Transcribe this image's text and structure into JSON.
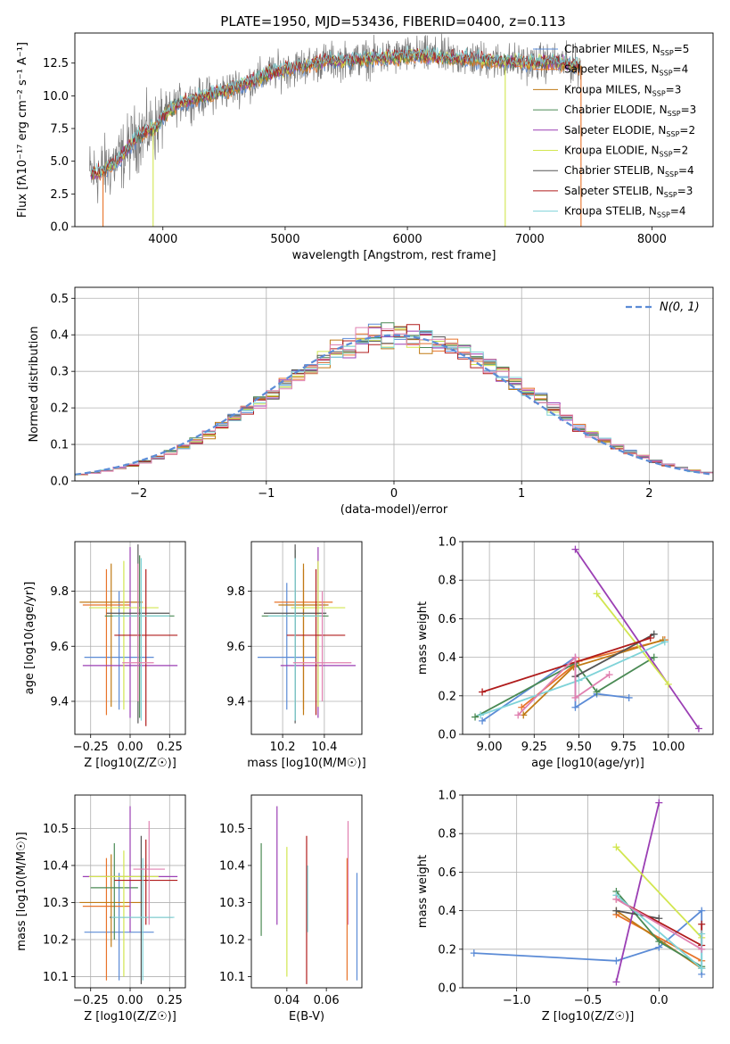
{
  "figure_title": "PLATE=1950, MJD=53436, FIBERID=0400, z=0.113",
  "colors": {
    "chabrier_miles": "#5b8bd6",
    "salpeter_miles": "#e8742a",
    "kroupa_miles": "#c07a14",
    "chabrier_elodie": "#4a8a54",
    "salpeter_elodie": "#9b3fb4",
    "kroupa_elodie": "#d2e650",
    "chabrier_stelib": "#555555",
    "salpeter_stelib": "#b01c1c",
    "kroupa_stelib": "#7fd3d8",
    "pink": "#e080b0",
    "gaussian": "#5b8bd6"
  },
  "chart_data": [
    {
      "id": "spectrum",
      "type": "line",
      "title": "PLATE=1950, MJD=53436, FIBERID=0400, z=0.113",
      "xlabel": "wavelength [Angstrom, rest frame]",
      "ylabel": "Flux [fλ10⁻¹⁷ erg cm⁻² s⁻¹ A⁻¹]",
      "xlim": [
        3280,
        8500
      ],
      "ylim": [
        0,
        14.8
      ],
      "xticks": [
        4000,
        5000,
        6000,
        7000,
        8000
      ],
      "yticks": [
        0.0,
        2.5,
        5.0,
        7.5,
        10.0,
        12.5
      ],
      "xticklabels": [
        "4000",
        "5000",
        "6000",
        "7000",
        "8000"
      ],
      "yticklabels": [
        "0.0",
        "2.5",
        "5.0",
        "7.5",
        "10.0",
        "12.5"
      ],
      "grid": false,
      "legend_position": "right",
      "series": [
        {
          "name": "Chabrier MILES, N",
          "sub": "SSP",
          "tail": "=5"
        },
        {
          "name": "Salpeter MILES, N",
          "sub": "SSP",
          "tail": "=4"
        },
        {
          "name": "Kroupa MILES, N",
          "sub": "SSP",
          "tail": "=3"
        },
        {
          "name": "Chabrier ELODIE, N",
          "sub": "SSP",
          "tail": "=3"
        },
        {
          "name": "Salpeter ELODIE, N",
          "sub": "SSP",
          "tail": "=2"
        },
        {
          "name": "Kroupa ELODIE, N",
          "sub": "SSP",
          "tail": "=2"
        },
        {
          "name": "Chabrier STELIB, N",
          "sub": "SSP",
          "tail": "=4"
        },
        {
          "name": "Salpeter STELIB, N",
          "sub": "SSP",
          "tail": "=3"
        },
        {
          "name": "Kroupa STELIB, N",
          "sub": "SSP",
          "tail": "=4"
        }
      ],
      "continuum": [
        [
          3400,
          4.0
        ],
        [
          3500,
          4.2
        ],
        [
          3650,
          5.2
        ],
        [
          3800,
          7.0
        ],
        [
          3950,
          7.6
        ],
        [
          4000,
          8.5
        ],
        [
          4150,
          9.5
        ],
        [
          4300,
          9.8
        ],
        [
          4500,
          10.4
        ],
        [
          4700,
          11.0
        ],
        [
          4900,
          11.8
        ],
        [
          5100,
          12.2
        ],
        [
          5300,
          12.6
        ],
        [
          5500,
          12.7
        ],
        [
          5800,
          12.9
        ],
        [
          6100,
          13.1
        ],
        [
          6400,
          12.9
        ],
        [
          6700,
          12.7
        ],
        [
          7000,
          12.5
        ],
        [
          7200,
          12.6
        ],
        [
          7420,
          12.3
        ]
      ],
      "edges": [
        {
          "x": 3510,
          "color": "salpeter_miles"
        },
        {
          "x": 3920,
          "color": "kroupa_elodie"
        },
        {
          "x": 6800,
          "color": "kroupa_elodie"
        },
        {
          "x": 7420,
          "color": "salpeter_miles"
        }
      ]
    },
    {
      "id": "residuals",
      "type": "histogram",
      "xlabel": "(data-model)/error",
      "ylabel": "Normed distribution",
      "xlim": [
        -2.5,
        2.5
      ],
      "ylim": [
        0,
        0.53
      ],
      "xticks": [
        -2,
        -1,
        0,
        1,
        2
      ],
      "xticklabels": [
        "−2",
        "−1",
        "0",
        "1",
        "2"
      ],
      "yticks": [
        0.0,
        0.1,
        0.2,
        0.3,
        0.4,
        0.5
      ],
      "yticklabels": [
        "0.0",
        "0.1",
        "0.2",
        "0.3",
        "0.4",
        "0.5"
      ],
      "grid": true,
      "legend_position": "top-right",
      "gaussian_label": "N(0, 1)",
      "bin_width": 0.1
    },
    {
      "id": "z_age",
      "type": "errorbar",
      "xlabel": "Z [log10(Z/Z☉)]",
      "ylabel": "age [log10(age/yr)]",
      "xlim": [
        -0.35,
        0.35
      ],
      "ylim": [
        9.28,
        9.98
      ],
      "xticks": [
        -0.25,
        0.0,
        0.25
      ],
      "xticklabels": [
        "−0.25",
        "0.00",
        "0.25"
      ],
      "yticks": [
        9.4,
        9.6,
        9.8
      ],
      "yticklabels": [
        "9.4",
        "9.6",
        "9.8"
      ],
      "grid": true,
      "points": [
        {
          "x": -0.07,
          "y": 9.56,
          "xerr": 0.22,
          "ylo": 9.37,
          "yhi": 9.8,
          "color": "chabrier_miles"
        },
        {
          "x": -0.15,
          "y": 9.75,
          "xerr": 0.15,
          "ylo": 9.35,
          "yhi": 9.88,
          "color": "salpeter_miles"
        },
        {
          "x": -0.12,
          "y": 9.76,
          "xerr": 0.2,
          "ylo": 9.38,
          "yhi": 9.9,
          "color": "kroupa_miles"
        },
        {
          "x": 0.06,
          "y": 9.71,
          "xerr": 0.22,
          "ylo": 9.34,
          "yhi": 9.93,
          "color": "chabrier_elodie"
        },
        {
          "x": 0.0,
          "y": 9.53,
          "xerr": 0.3,
          "ylo": 9.34,
          "yhi": 9.96,
          "color": "salpeter_elodie"
        },
        {
          "x": -0.04,
          "y": 9.74,
          "xerr": 0.22,
          "ylo": 9.37,
          "yhi": 9.91,
          "color": "kroupa_elodie"
        },
        {
          "x": 0.05,
          "y": 9.72,
          "xerr": 0.2,
          "ylo": 9.32,
          "yhi": 9.97,
          "color": "chabrier_stelib"
        },
        {
          "x": 0.1,
          "y": 9.64,
          "xerr": 0.2,
          "ylo": 9.31,
          "yhi": 9.88,
          "color": "salpeter_stelib"
        },
        {
          "x": 0.07,
          "y": 9.71,
          "xerr": 0.18,
          "ylo": 9.33,
          "yhi": 9.92,
          "color": "kroupa_stelib"
        },
        {
          "x": 0.05,
          "y": 9.54,
          "xerr": 0.1,
          "ylo": 9.4,
          "yhi": 9.9,
          "color": "pink"
        }
      ]
    },
    {
      "id": "mass_age",
      "type": "errorbar",
      "xlabel": "mass [log10(M/M☉)]",
      "xlim": [
        10.05,
        10.58
      ],
      "ylim": [
        9.28,
        9.98
      ],
      "xticks": [
        10.2,
        10.4
      ],
      "xticklabels": [
        "10.2",
        "10.4"
      ],
      "yticks": [
        9.4,
        9.6,
        9.8
      ],
      "yticklabels": [
        "9.4",
        "9.6",
        "9.8"
      ],
      "grid": true,
      "points": [
        {
          "x": 10.22,
          "y": 9.56,
          "xerr": 0.14,
          "ylo": 9.37,
          "yhi": 9.83,
          "color": "chabrier_miles"
        },
        {
          "x": 10.3,
          "y": 9.76,
          "xerr": 0.14,
          "ylo": 9.37,
          "yhi": 9.88,
          "color": "salpeter_miles"
        },
        {
          "x": 10.3,
          "y": 9.75,
          "xerr": 0.12,
          "ylo": 9.35,
          "yhi": 9.9,
          "color": "kroupa_miles"
        },
        {
          "x": 10.26,
          "y": 9.71,
          "xerr": 0.16,
          "ylo": 9.33,
          "yhi": 9.95,
          "color": "chabrier_elodie"
        },
        {
          "x": 10.37,
          "y": 9.53,
          "xerr": 0.18,
          "ylo": 9.34,
          "yhi": 9.96,
          "color": "salpeter_elodie"
        },
        {
          "x": 10.37,
          "y": 9.74,
          "xerr": 0.13,
          "ylo": 9.38,
          "yhi": 9.91,
          "color": "kroupa_elodie"
        },
        {
          "x": 10.26,
          "y": 9.72,
          "xerr": 0.15,
          "ylo": 9.32,
          "yhi": 9.97,
          "color": "chabrier_stelib"
        },
        {
          "x": 10.36,
          "y": 9.64,
          "xerr": 0.14,
          "ylo": 9.35,
          "yhi": 9.88,
          "color": "salpeter_stelib"
        },
        {
          "x": 10.26,
          "y": 9.71,
          "xerr": 0.13,
          "ylo": 9.33,
          "yhi": 9.92,
          "color": "kroupa_stelib"
        },
        {
          "x": 10.39,
          "y": 9.54,
          "xerr": 0.14,
          "ylo": 9.4,
          "yhi": 9.8,
          "color": "pink"
        }
      ]
    },
    {
      "id": "age_weight",
      "type": "line",
      "xlabel": "age [log10(age/yr)]",
      "ylabel": "mass weight",
      "xlim": [
        8.85,
        10.25
      ],
      "ylim": [
        0.0,
        1.0
      ],
      "xticks": [
        9.0,
        9.25,
        9.5,
        9.75,
        10.0
      ],
      "xticklabels": [
        "9.00",
        "9.25",
        "9.50",
        "9.75",
        "10.00"
      ],
      "yticks": [
        0.0,
        0.2,
        0.4,
        0.6,
        0.8,
        1.0
      ],
      "yticklabels": [
        "0.0",
        "0.2",
        "0.4",
        "0.6",
        "0.8",
        "1.0"
      ],
      "grid": true,
      "series": [
        {
          "color": "chabrier_miles",
          "points": [
            [
              8.96,
              0.07
            ],
            [
              9.48,
              0.4
            ],
            [
              9.48,
              0.14
            ],
            [
              9.6,
              0.21
            ],
            [
              9.78,
              0.19
            ]
          ]
        },
        {
          "color": "salpeter_miles",
          "points": [
            [
              9.18,
              0.14
            ],
            [
              9.5,
              0.38
            ],
            [
              9.98,
              0.49
            ]
          ]
        },
        {
          "color": "kroupa_miles",
          "points": [
            [
              9.19,
              0.1
            ],
            [
              9.47,
              0.35
            ],
            [
              9.97,
              0.49
            ]
          ]
        },
        {
          "color": "chabrier_elodie",
          "points": [
            [
              8.92,
              0.09
            ],
            [
              9.48,
              0.37
            ],
            [
              9.6,
              0.22
            ],
            [
              9.92,
              0.4
            ]
          ]
        },
        {
          "color": "salpeter_elodie",
          "points": [
            [
              9.48,
              0.96
            ],
            [
              10.17,
              0.03
            ]
          ]
        },
        {
          "color": "kroupa_elodie",
          "points": [
            [
              9.6,
              0.73
            ],
            [
              10.0,
              0.26
            ]
          ]
        },
        {
          "color": "chabrier_stelib",
          "points": [
            [
              9.48,
              0.3
            ],
            [
              9.92,
              0.52
            ]
          ]
        },
        {
          "color": "salpeter_stelib",
          "points": [
            [
              8.96,
              0.22
            ],
            [
              9.9,
              0.5
            ]
          ]
        },
        {
          "color": "kroupa_stelib",
          "points": [
            [
              8.95,
              0.1
            ],
            [
              9.5,
              0.28
            ],
            [
              9.98,
              0.48
            ]
          ]
        },
        {
          "color": "pink",
          "points": [
            [
              9.16,
              0.1
            ],
            [
              9.48,
              0.4
            ],
            [
              9.48,
              0.19
            ],
            [
              9.67,
              0.31
            ]
          ]
        }
      ]
    },
    {
      "id": "z_mass",
      "type": "errorbar",
      "xlabel": "Z [log10(Z/Z☉)]",
      "ylabel": "mass [log10(M/M☉)]",
      "xlim": [
        -0.35,
        0.35
      ],
      "ylim": [
        10.07,
        10.59
      ],
      "xticks": [
        -0.25,
        0.0,
        0.25
      ],
      "xticklabels": [
        "−0.25",
        "0.00",
        "0.25"
      ],
      "yticks": [
        10.1,
        10.2,
        10.3,
        10.4,
        10.5
      ],
      "yticklabels": [
        "10.1",
        "10.2",
        "10.3",
        "10.4",
        "10.5"
      ],
      "grid": true,
      "points": [
        {
          "x": -0.07,
          "y": 10.22,
          "xerr": 0.22,
          "ylo": 10.09,
          "yhi": 10.38,
          "color": "chabrier_miles"
        },
        {
          "x": -0.15,
          "y": 10.29,
          "xerr": 0.15,
          "ylo": 10.09,
          "yhi": 10.42,
          "color": "salpeter_miles"
        },
        {
          "x": -0.12,
          "y": 10.3,
          "xerr": 0.2,
          "ylo": 10.18,
          "yhi": 10.43,
          "color": "kroupa_miles"
        },
        {
          "x": -0.1,
          "y": 10.34,
          "xerr": 0.15,
          "ylo": 10.2,
          "yhi": 10.46,
          "color": "chabrier_elodie"
        },
        {
          "x": 0.0,
          "y": 10.37,
          "xerr": 0.3,
          "ylo": 10.22,
          "yhi": 10.56,
          "color": "salpeter_elodie"
        },
        {
          "x": -0.04,
          "y": 10.37,
          "xerr": 0.22,
          "ylo": 10.1,
          "yhi": 10.44,
          "color": "kroupa_elodie"
        },
        {
          "x": 0.07,
          "y": 10.26,
          "xerr": 0.2,
          "ylo": 10.08,
          "yhi": 10.48,
          "color": "chabrier_stelib"
        },
        {
          "x": 0.1,
          "y": 10.36,
          "xerr": 0.2,
          "ylo": 10.24,
          "yhi": 10.47,
          "color": "salpeter_stelib"
        },
        {
          "x": 0.08,
          "y": 10.26,
          "xerr": 0.2,
          "ylo": 10.09,
          "yhi": 10.42,
          "color": "kroupa_stelib"
        },
        {
          "x": 0.12,
          "y": 10.39,
          "xerr": 0.1,
          "ylo": 10.24,
          "yhi": 10.52,
          "color": "pink"
        }
      ]
    },
    {
      "id": "ebv_mass",
      "type": "errorbar",
      "xlabel": "E(B-V)",
      "xlim": [
        0.022,
        0.078
      ],
      "ylim": [
        10.07,
        10.59
      ],
      "xticks": [
        0.04,
        0.06
      ],
      "xticklabels": [
        "0.04",
        "0.06"
      ],
      "yticks": [
        10.1,
        10.2,
        10.3,
        10.4,
        10.5
      ],
      "yticklabels": [
        "10.1",
        "10.2",
        "10.3",
        "10.4",
        "10.5"
      ],
      "grid": false,
      "points": [
        {
          "x": 0.0755,
          "ylo": 10.09,
          "yhi": 10.38,
          "color": "chabrier_miles"
        },
        {
          "x": 0.0705,
          "ylo": 10.09,
          "yhi": 10.42,
          "color": "salpeter_miles"
        },
        {
          "x": 0.027,
          "ylo": 10.21,
          "yhi": 10.46,
          "color": "chabrier_elodie"
        },
        {
          "x": 0.035,
          "ylo": 10.24,
          "yhi": 10.56,
          "color": "salpeter_elodie"
        },
        {
          "x": 0.04,
          "ylo": 10.1,
          "yhi": 10.45,
          "color": "kroupa_elodie"
        },
        {
          "x": 0.05,
          "ylo": 10.08,
          "yhi": 10.48,
          "color": "salpeter_stelib"
        },
        {
          "x": 0.0505,
          "ylo": 10.22,
          "yhi": 10.4,
          "color": "kroupa_stelib"
        },
        {
          "x": 0.071,
          "ylo": 10.24,
          "yhi": 10.52,
          "color": "pink"
        }
      ]
    },
    {
      "id": "z_weight",
      "type": "line",
      "xlabel": "Z [log10(Z/Z☉)]",
      "ylabel": "mass weight",
      "xlim": [
        -1.38,
        0.38
      ],
      "ylim": [
        0.0,
        1.0
      ],
      "xticks": [
        -1.0,
        -0.5,
        0.0
      ],
      "xticklabels": [
        "−1.0",
        "−0.5",
        "0.0"
      ],
      "yticks": [
        0.0,
        0.2,
        0.4,
        0.6,
        0.8,
        1.0
      ],
      "yticklabels": [
        "0.0",
        "0.2",
        "0.4",
        "0.6",
        "0.8",
        "1.0"
      ],
      "grid": true,
      "series": [
        {
          "color": "chabrier_miles",
          "points": [
            [
              -1.3,
              0.18
            ],
            [
              -0.3,
              0.14
            ],
            [
              0.0,
              0.21
            ],
            [
              0.3,
              0.4
            ],
            [
              0.3,
              0.07
            ]
          ]
        },
        {
          "color": "salpeter_miles",
          "points": [
            [
              -0.3,
              0.38
            ],
            [
              0.3,
              0.14
            ]
          ]
        },
        {
          "color": "kroupa_miles",
          "points": [
            [
              -0.3,
              0.4
            ],
            [
              0.3,
              0.1
            ]
          ]
        },
        {
          "color": "chabrier_elodie",
          "points": [
            [
              -0.3,
              0.5
            ],
            [
              0.0,
              0.24
            ],
            [
              0.3,
              0.11
            ]
          ]
        },
        {
          "color": "salpeter_elodie",
          "points": [
            [
              -0.3,
              0.03
            ],
            [
              0.0,
              0.96
            ]
          ]
        },
        {
          "color": "kroupa_elodie",
          "points": [
            [
              -0.3,
              0.73
            ],
            [
              0.3,
              0.26
            ]
          ]
        },
        {
          "color": "chabrier_stelib",
          "points": [
            [
              -0.3,
              0.4
            ],
            [
              0.0,
              0.36
            ]
          ]
        },
        {
          "color": "salpeter_stelib",
          "points": [
            [
              -0.3,
              0.46
            ],
            [
              0.3,
              0.22
            ],
            [
              0.3,
              0.33
            ]
          ]
        },
        {
          "color": "kroupa_stelib",
          "points": [
            [
              -0.3,
              0.48
            ],
            [
              0.3,
              0.1
            ],
            [
              0.3,
              0.28
            ]
          ]
        },
        {
          "color": "pink",
          "points": [
            [
              -0.3,
              0.46
            ],
            [
              0.3,
              0.2
            ]
          ]
        }
      ]
    }
  ]
}
